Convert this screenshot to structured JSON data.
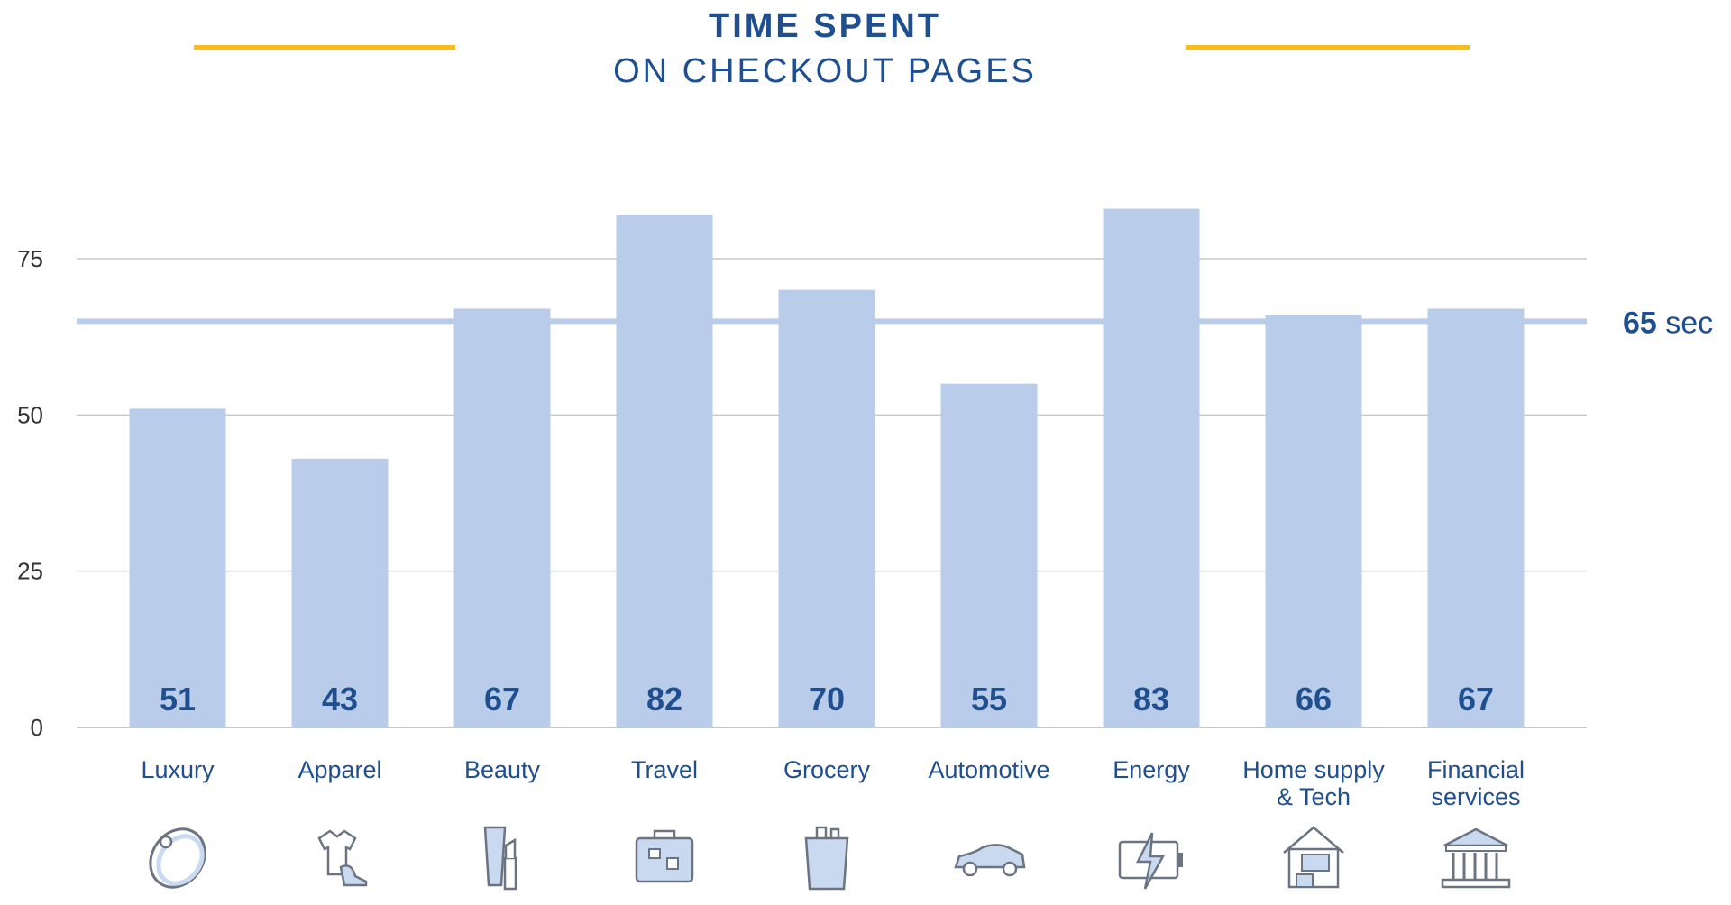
{
  "title": {
    "line1": "TIME SPENT",
    "line2": "ON CHECKOUT PAGES"
  },
  "colors": {
    "accent": "#f5bd1f",
    "bar": "#b9cce9",
    "text": "#1f4f8f",
    "reference": "#b9cce9",
    "grid": "#c8c8c8"
  },
  "reference_label": {
    "value": "65",
    "unit": "sec"
  },
  "chart_data": {
    "type": "bar",
    "title": "TIME SPENT ON CHECKOUT PAGES",
    "xlabel": "",
    "ylabel": "",
    "categories": [
      "Luxury",
      "Apparel",
      "Beauty",
      "Travel",
      "Grocery",
      "Automotive",
      "Energy",
      "Home supply & Tech",
      "Financial services"
    ],
    "category_lines": [
      [
        "Luxury"
      ],
      [
        "Apparel"
      ],
      [
        "Beauty"
      ],
      [
        "Travel"
      ],
      [
        "Grocery"
      ],
      [
        "Automotive"
      ],
      [
        "Energy"
      ],
      [
        "Home supply",
        "& Tech"
      ],
      [
        "Financial",
        "services"
      ]
    ],
    "values": [
      51,
      43,
      67,
      82,
      70,
      55,
      83,
      66,
      67
    ],
    "data_labels": [
      "51",
      "43",
      "67",
      "82",
      "70",
      "55",
      "83",
      "66",
      "67"
    ],
    "ylim": [
      0,
      90
    ],
    "yticks": [
      0,
      25,
      50,
      75
    ],
    "reference_line": 65,
    "grid": true,
    "legend": "none"
  },
  "icons": [
    "ring-icon",
    "apparel-icon",
    "beauty-icon",
    "suitcase-icon",
    "grocery-bag-icon",
    "car-icon",
    "battery-icon",
    "home-tech-icon",
    "bank-icon"
  ]
}
